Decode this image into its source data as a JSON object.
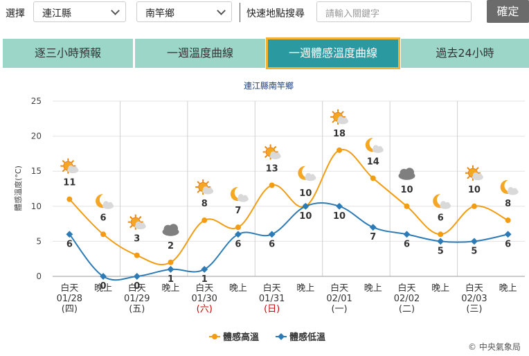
{
  "filters": {
    "select_label": "選擇",
    "county": "連江縣",
    "township": "南竿鄉",
    "search_label": "快速地點搜尋",
    "search_placeholder": "請輸入關鍵字",
    "confirm_label": "確定"
  },
  "tabs": [
    {
      "label": "逐三小時預報",
      "active": false
    },
    {
      "label": "一週溫度曲線",
      "active": false
    },
    {
      "label": "一週體感溫度曲線",
      "active": true
    },
    {
      "label": "過去24小時",
      "active": false
    }
  ],
  "copyright": "© 中央氣象局",
  "chart_data": {
    "type": "line",
    "title": "連江縣南竿鄉",
    "ylabel": "體感溫度(°C)",
    "ylim": [
      0,
      25
    ],
    "yticks": [
      0,
      5,
      10,
      15,
      20,
      25
    ],
    "categories": [
      "白天",
      "晚上",
      "白天",
      "晚上",
      "白天",
      "晚上",
      "白天",
      "晚上",
      "白天",
      "晚上",
      "白天",
      "晚上",
      "白天",
      "晚上"
    ],
    "days": [
      {
        "date": "01/28",
        "weekday": "(四)",
        "holiday": false
      },
      {
        "date": "01/29",
        "weekday": "(五)",
        "holiday": false
      },
      {
        "date": "01/30",
        "weekday": "(六)",
        "holiday": true
      },
      {
        "date": "01/31",
        "weekday": "(日)",
        "holiday": true
      },
      {
        "date": "02/01",
        "weekday": "(一)",
        "holiday": false
      },
      {
        "date": "02/02",
        "weekday": "(二)",
        "holiday": false
      },
      {
        "date": "02/03",
        "weekday": "(三)",
        "holiday": false
      }
    ],
    "icons": [
      "sun-cloud-icon",
      "moon-cloud-icon",
      "sun-cloud-icon",
      "cloudy-icon",
      "sun-cloud-icon",
      "moon-cloud-icon",
      "sun-cloud-icon",
      "moon-cloud-icon",
      "sun-cloud-icon",
      "moon-cloud-icon",
      "cloudy-icon",
      "moon-cloud-icon",
      "sun-cloud-icon",
      "moon-cloud-icon"
    ],
    "series": [
      {
        "name": "體感高溫",
        "color": "#f39c12",
        "values": [
          11,
          6,
          3,
          2,
          8,
          7,
          13,
          10,
          18,
          14,
          10,
          6,
          10,
          8
        ]
      },
      {
        "name": "體感低溫",
        "color": "#2c7bb6",
        "values": [
          6,
          0,
          0,
          1,
          1,
          6,
          6,
          10,
          10,
          7,
          6,
          5,
          5,
          6
        ]
      }
    ],
    "legend_position": "bottom-center",
    "grid": true,
    "holiday_color": "#cc0000"
  }
}
